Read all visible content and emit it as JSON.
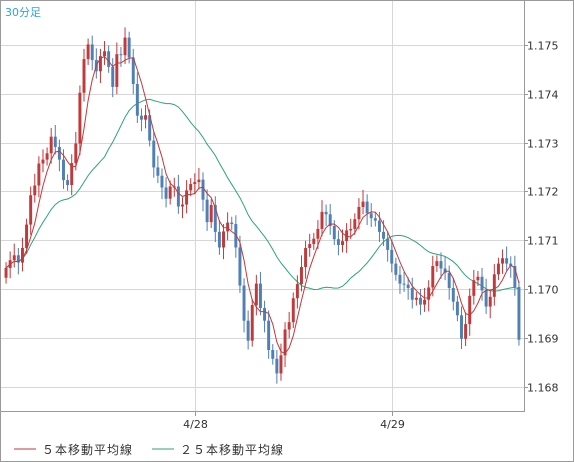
{
  "chart_data": {
    "type": "candlestick",
    "timeframe_label": "30分足",
    "y_axis": {
      "ticks": [
        1.175,
        1.174,
        1.173,
        1.172,
        1.171,
        1.17,
        1.169,
        1.168
      ],
      "tick_labels": [
        "1.175",
        "1.174",
        "1.173",
        "1.172",
        "1.171",
        "1.170",
        "1.169",
        "1.168"
      ],
      "range": [
        1.1675,
        1.1759
      ],
      "position": "right"
    },
    "x_axis": {
      "date_labels": [
        {
          "label": "4/28",
          "index": 46
        },
        {
          "label": "4/29",
          "index": 94
        }
      ],
      "bar_count": 126
    },
    "grid": true,
    "legend_position": "bottom",
    "legend": [
      {
        "label": "５本移動平均線",
        "color": "#c0393b"
      },
      {
        "label": "２５本移動平均線",
        "color": "#2fa37a"
      }
    ],
    "colors": {
      "up_candle": "#c0393b",
      "down_candle": "#4f7fb5",
      "ma5": "#c0393b",
      "ma25": "#2fa37a",
      "grid": "#d7d7d7",
      "frame": "#9a9a9a"
    },
    "close": [
      1.17043,
      1.17059,
      1.17069,
      1.17054,
      1.17084,
      1.17132,
      1.17192,
      1.17212,
      1.17257,
      1.17265,
      1.17278,
      1.17312,
      1.17291,
      1.17265,
      1.17223,
      1.17213,
      1.17258,
      1.17298,
      1.17402,
      1.17471,
      1.17501,
      1.17469,
      1.17446,
      1.17477,
      1.17487,
      1.17455,
      1.17414,
      1.17481,
      1.17479,
      1.17515,
      1.17474,
      1.1742,
      1.17355,
      1.17347,
      1.17356,
      1.17304,
      1.17249,
      1.17232,
      1.17208,
      1.17185,
      1.1721,
      1.1721,
      1.17169,
      1.17173,
      1.17202,
      1.17215,
      1.17219,
      1.17224,
      1.17183,
      1.17137,
      1.17172,
      1.17117,
      1.17085,
      1.17118,
      1.17136,
      1.17133,
      1.17085,
      1.17007,
      1.16935,
      1.16894,
      1.16967,
      1.17011,
      1.16961,
      1.16935,
      1.16875,
      1.16857,
      1.16827,
      1.16864,
      1.16917,
      1.16932,
      1.16981,
      1.1701,
      1.17045,
      1.17084,
      1.17092,
      1.17103,
      1.17123,
      1.17158,
      1.17153,
      1.17129,
      1.17102,
      1.1709,
      1.17098,
      1.1712,
      1.17123,
      1.17143,
      1.17168,
      1.17179,
      1.17155,
      1.17145,
      1.1714,
      1.17117,
      1.17103,
      1.1708,
      1.17052,
      1.17029,
      1.17011,
      1.17009,
      1.17002,
      1.16978,
      1.16982,
      1.16968,
      1.16978,
      1.17003,
      1.17047,
      1.17057,
      1.17042,
      1.17033,
      1.17002,
      1.16974,
      1.16946,
      1.16898,
      1.16928,
      1.16986,
      1.17018,
      1.17025,
      1.16997,
      1.16964,
      1.16984,
      1.1703,
      1.17052,
      1.17063,
      1.17052,
      1.17047,
      1.17004,
      1.16896
    ]
  }
}
